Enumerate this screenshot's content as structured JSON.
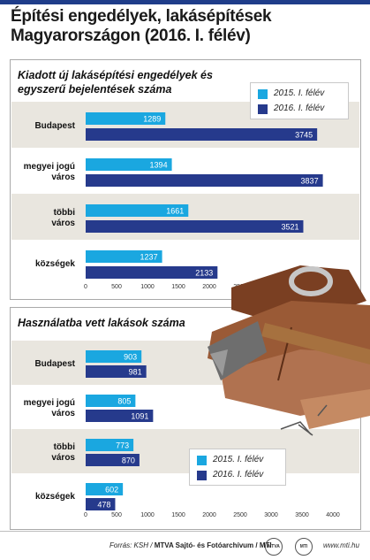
{
  "title": "Építési engedélyek, lakásépítések Magyarországon (2016. I. félév)",
  "colors": {
    "series_2015": "#1aa7e0",
    "series_2016": "#263a8c",
    "band": "#e9e6df"
  },
  "legend_position": "top-right",
  "legend_labels": [
    "2015. I. félév",
    "2016. I. félév"
  ],
  "chart_data": [
    {
      "type": "bar",
      "orientation": "horizontal",
      "title": "Kiadott új lakásépítési engedélyek és egyszerű bejelentések száma",
      "categories": [
        "Budapest",
        "megyei jogú város",
        "többi város",
        "községek"
      ],
      "series": [
        {
          "name": "2015. I. félév",
          "values": [
            1289,
            1394,
            1661,
            1237
          ]
        },
        {
          "name": "2016. I. félév",
          "values": [
            3745,
            3837,
            3521,
            2133
          ]
        }
      ],
      "xlim": [
        0,
        4000
      ],
      "ticks": [
        0,
        500,
        1000,
        1500,
        2000,
        2500
      ],
      "legend": "top-right",
      "grid": false
    },
    {
      "type": "bar",
      "orientation": "horizontal",
      "title": "Használatba vett lakások száma",
      "categories": [
        "Budapest",
        "megyei jogú város",
        "többi város",
        "községek"
      ],
      "series": [
        {
          "name": "2015. I. félév",
          "values": [
            903,
            805,
            773,
            602
          ]
        },
        {
          "name": "2016. I. félév",
          "values": [
            981,
            1091,
            870,
            478
          ]
        }
      ],
      "xlim": [
        0,
        4000
      ],
      "ticks": [
        0,
        500,
        1000,
        1500,
        2000,
        2500,
        3000,
        3500,
        4000
      ],
      "legend": "bottom-center",
      "grid": false
    }
  ],
  "footer": {
    "source_prefix": "Forrás: KSH / ",
    "source_bold": "MTVA Sajtó- és Fotóarchívum / MTI",
    "logo1": "MTVA",
    "logo2": "MTI",
    "url": "www.mti.hu"
  }
}
